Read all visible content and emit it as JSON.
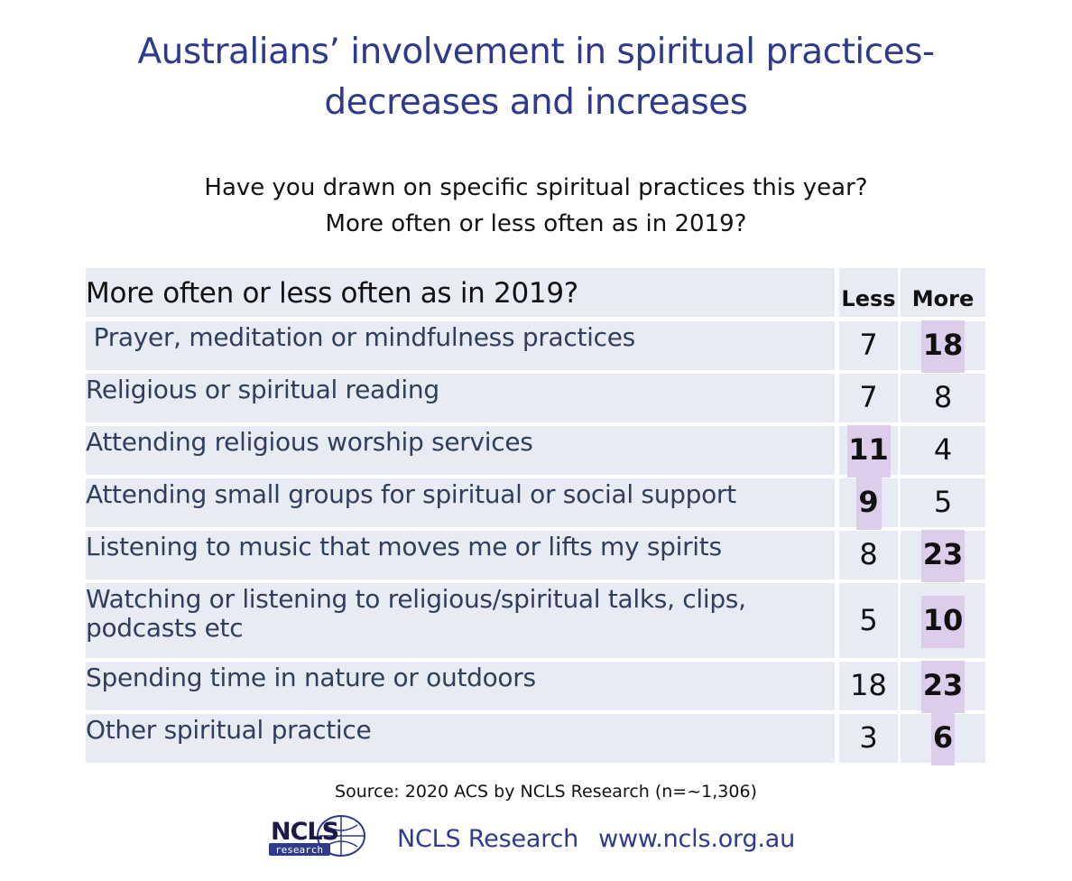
{
  "title_line1": "Australians’ involvement in spiritual practices-",
  "title_line2": "decreases and increases",
  "subtitle_line1": "Have you drawn on specific spiritual practices this year?",
  "subtitle_line2": "More often or less often as in 2019?",
  "chart_data": {
    "type": "table",
    "header": "More often or less often as in 2019?",
    "columns": [
      "Less",
      "More"
    ],
    "rows": [
      {
        "label": " Prayer, meditation or mindfulness practices",
        "less": 7,
        "more": 18,
        "highlight": "more"
      },
      {
        "label": "Religious or spiritual reading",
        "less": 7,
        "more": 8,
        "highlight": ""
      },
      {
        "label": "Attending religious worship services",
        "less": 11,
        "more": 4,
        "highlight": "less"
      },
      {
        "label": "Attending small groups for spiritual or social support",
        "less": 9,
        "more": 5,
        "highlight": "less"
      },
      {
        "label": "Listening to music that moves me or lifts my spirits",
        "less": 8,
        "more": 23,
        "highlight": "more"
      },
      {
        "label": "Watching or listening to religious/spiritual talks, clips, podcasts etc",
        "less": 5,
        "more": 10,
        "highlight": "more"
      },
      {
        "label": "Spending time in nature or outdoors",
        "less": 18,
        "more": 23,
        "highlight": "more"
      },
      {
        "label": "Other spiritual practice",
        "less": 3,
        "more": 6,
        "highlight": "more"
      }
    ]
  },
  "source": "Source: 2020 ACS by NCLS Research (n=~1,306)",
  "logo": {
    "main": "NCLS",
    "sub": "research"
  },
  "footer": {
    "org": "NCLS Research",
    "url": "www.ncls.org.au"
  },
  "colors": {
    "title": "#2e3a8c",
    "cell_bg": "#e8ebf3",
    "highlight": "#dccdeb",
    "label_text": "#2f3e5c"
  }
}
